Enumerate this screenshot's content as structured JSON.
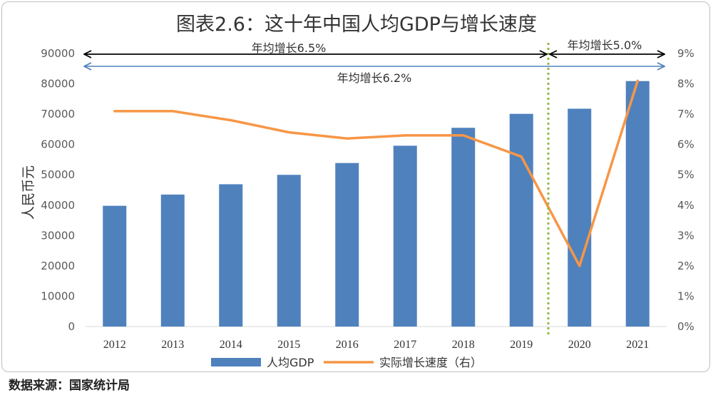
{
  "chart_data": {
    "type": "bar",
    "title": "图表2.6：这十年中国人均GDP与增长速度",
    "ylabel": "人民币元",
    "categories": [
      "2012",
      "2013",
      "2014",
      "2015",
      "2016",
      "2017",
      "2018",
      "2019",
      "2020",
      "2021"
    ],
    "ylim": [
      0,
      90000
    ],
    "y_ticks": [
      "0",
      "10000",
      "20000",
      "30000",
      "40000",
      "50000",
      "60000",
      "70000",
      "80000",
      "90000"
    ],
    "y2lim": [
      0,
      9
    ],
    "y2_ticks": [
      "0%",
      "1%",
      "2%",
      "3%",
      "4%",
      "5%",
      "6%",
      "7%",
      "8%",
      "9%"
    ],
    "series": [
      {
        "name": "人均GDP",
        "type": "bar",
        "axis": "left",
        "color": "#4f81bd",
        "values": [
          39800,
          43500,
          46900,
          50000,
          53900,
          59600,
          65500,
          70100,
          71800,
          80900
        ]
      },
      {
        "name": "实际增长速度（右）",
        "type": "line",
        "axis": "right",
        "color": "#f79646",
        "values": [
          7.1,
          7.1,
          6.8,
          6.4,
          6.2,
          6.3,
          6.3,
          5.6,
          2.0,
          8.1
        ]
      }
    ],
    "annotations": [
      {
        "label": "年均增长6.5%",
        "from": "2012",
        "to": "2019"
      },
      {
        "label": "年均增长5.0%",
        "from": "2020",
        "to": "2021"
      },
      {
        "label": "年均增长6.2%",
        "from": "2012",
        "to": "2021"
      }
    ],
    "legend_position": "bottom"
  },
  "source": "数据来源：国家统计局",
  "colors": {
    "bar": "#4f81bd",
    "line": "#f79646",
    "divider": "#92b846",
    "arrow_black": "#000000",
    "arrow_blue": "#4f81bd"
  }
}
